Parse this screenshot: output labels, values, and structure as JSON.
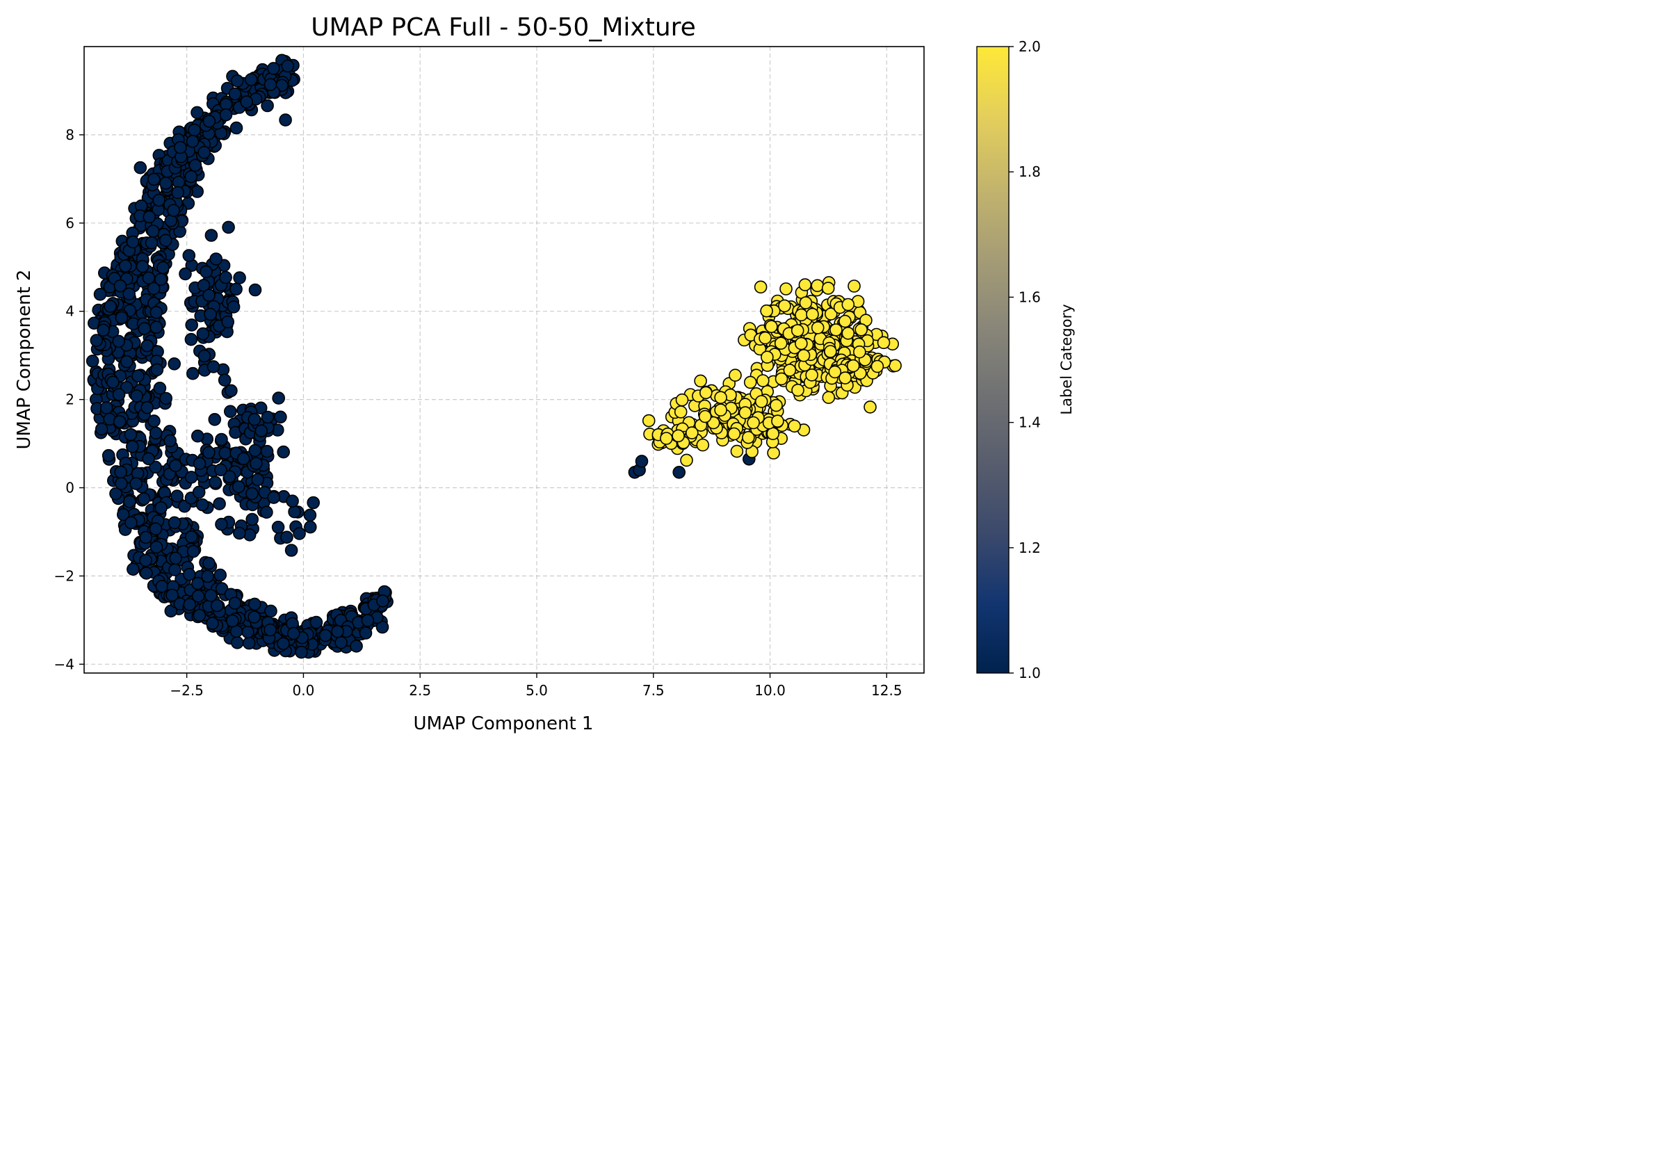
{
  "chart_data": {
    "type": "scatter",
    "title": "UMAP PCA Full - 50-50_Mixture",
    "xlabel": "UMAP Component 1",
    "ylabel": "UMAP Component 2",
    "xlim": [
      -4.7,
      13.3
    ],
    "ylim": [
      -4.2,
      10.0
    ],
    "grid": true,
    "x_ticks": [
      -2.5,
      0.0,
      2.5,
      5.0,
      7.5,
      10.0,
      12.5
    ],
    "x_tick_labels": [
      "−2.5",
      "0.0",
      "2.5",
      "5.0",
      "7.5",
      "10.0",
      "12.5"
    ],
    "y_ticks": [
      -4,
      -2,
      0,
      2,
      4,
      6,
      8
    ],
    "y_tick_labels": [
      "−4",
      "−2",
      "0",
      "2",
      "4",
      "6",
      "8"
    ],
    "colorbar": {
      "label": "Label Category",
      "range": [
        1.0,
        2.0
      ],
      "ticks": [
        1.0,
        1.2,
        1.4,
        1.6,
        1.8,
        2.0
      ],
      "tick_labels": [
        "1.0",
        "1.2",
        "1.4",
        "1.6",
        "1.8",
        "2.0"
      ],
      "colormap": "cividis",
      "gradient_colors": [
        "#00224e",
        "#123570",
        "#3b496c",
        "#575d6d",
        "#707173",
        "#8a8779",
        "#a69d75",
        "#c4b56c",
        "#e4cf5b",
        "#fee838"
      ]
    },
    "series": [
      {
        "label_value": 1,
        "color": "#00224e",
        "clusters": [
          {
            "path": [
              [
                -0.3,
                9.3
              ],
              [
                -1.0,
                9.1
              ],
              [
                -2.0,
                8.3
              ],
              [
                -2.6,
                7.5
              ],
              [
                -3.0,
                6.5
              ],
              [
                -3.3,
                5.6
              ],
              [
                -3.6,
                4.6
              ],
              [
                -3.8,
                3.6
              ],
              [
                -3.8,
                2.6
              ],
              [
                -3.6,
                1.6
              ],
              [
                -3.3,
                0.5
              ],
              [
                -3.1,
                -0.6
              ],
              [
                -2.9,
                -1.6
              ],
              [
                -2.4,
                -2.4
              ],
              [
                -1.6,
                -2.9
              ],
              [
                -0.6,
                -3.3
              ],
              [
                0.3,
                -3.4
              ],
              [
                1.1,
                -3.1
              ],
              [
                1.7,
                -2.7
              ]
            ],
            "widths": [
              0.15,
              0.3,
              0.4,
              0.45,
              0.55,
              0.6,
              0.6,
              0.7,
              0.75,
              0.8,
              0.85,
              0.8,
              0.75,
              0.6,
              0.5,
              0.45,
              0.35,
              0.25,
              0.1
            ],
            "count": 1100
          },
          {
            "center": [
              -1.3,
              0.6
            ],
            "spread": [
              0.9,
              1.2
            ],
            "count": 120
          },
          {
            "center": [
              -0.2,
              -0.8
            ],
            "spread": [
              0.35,
              0.5
            ],
            "count": 12
          },
          {
            "center": [
              -1.9,
              4.2
            ],
            "spread": [
              0.45,
              1.1
            ],
            "count": 80
          },
          {
            "center": [
              -0.9,
              1.4
            ],
            "spread": [
              0.35,
              0.25
            ],
            "count": 12
          }
        ],
        "outliers": [
          [
            7.1,
            0.35
          ],
          [
            7.2,
            0.4
          ],
          [
            7.25,
            0.6
          ],
          [
            8.05,
            0.35
          ],
          [
            9.55,
            0.65
          ],
          [
            -1.55,
            2.2
          ],
          [
            -1.05,
            1.55
          ]
        ]
      },
      {
        "label_value": 2,
        "color": "#fee838",
        "clusters": [
          {
            "center": [
              10.9,
              3.3
            ],
            "spread": [
              1.0,
              0.85
            ],
            "count": 380
          },
          {
            "center": [
              9.2,
              1.6
            ],
            "spread": [
              1.0,
              0.55
            ],
            "count": 140
          },
          {
            "center": [
              7.9,
              1.1
            ],
            "spread": [
              0.4,
              0.3
            ],
            "count": 30
          },
          {
            "center": [
              11.9,
              2.7
            ],
            "spread": [
              0.5,
              0.35
            ],
            "count": 50
          }
        ],
        "outliers": [
          [
            12.45,
            2.85
          ],
          [
            12.3,
            2.75
          ],
          [
            10.75,
            4.6
          ],
          [
            9.8,
            4.55
          ]
        ]
      }
    ],
    "point_color_values": [
      1,
      2
    ]
  }
}
